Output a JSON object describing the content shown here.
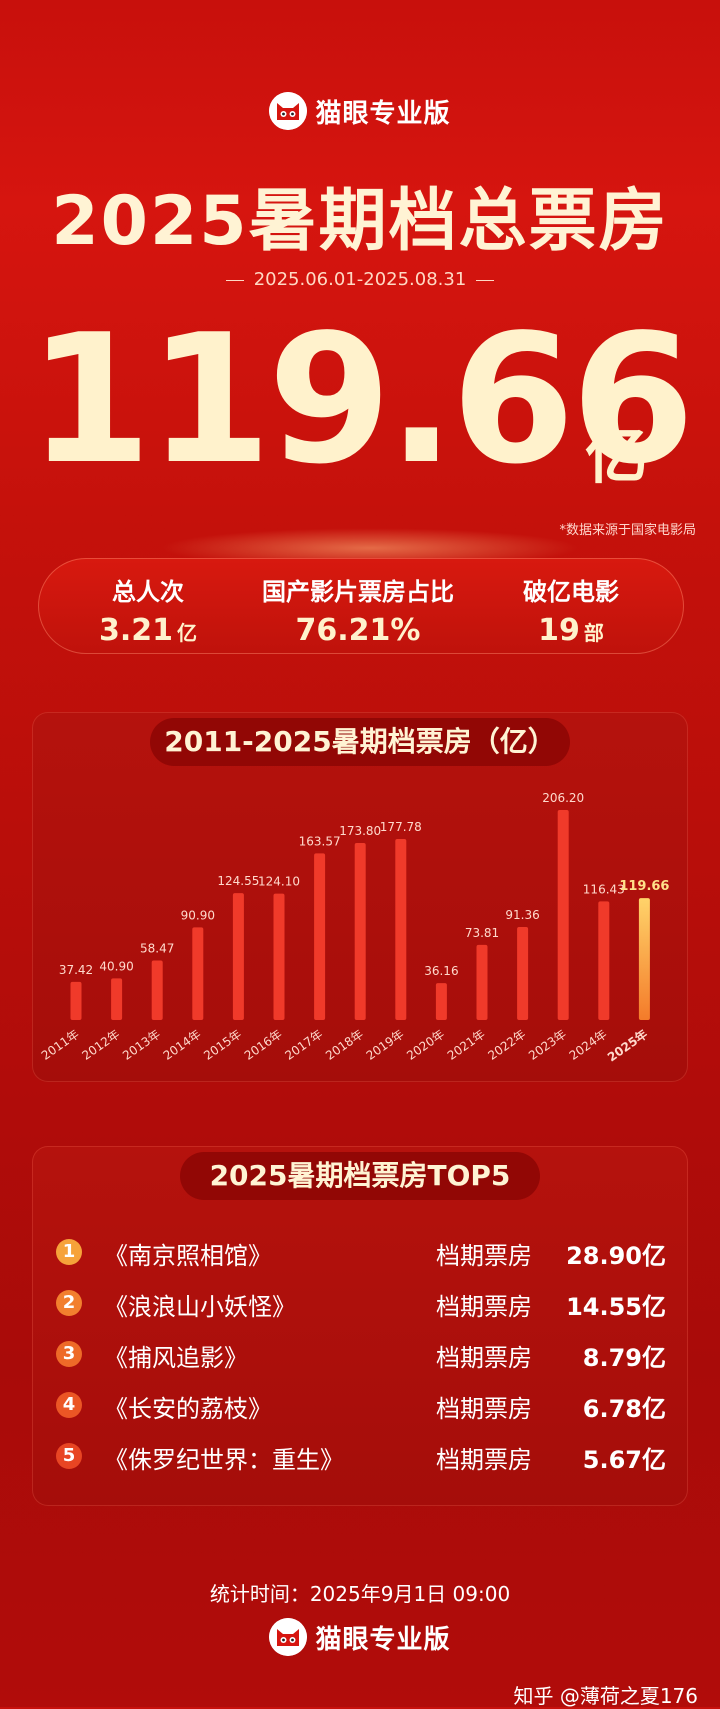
{
  "header": {
    "brand": "猫眼专业版",
    "title": "2025暑期档总票房",
    "date_range": "2025.06.01-2025.08.31",
    "total_value": "119.66",
    "total_unit": "亿",
    "source_note": "*数据来源于国家电影局"
  },
  "stats": [
    {
      "label": "总人次",
      "value": "3.21",
      "unit": "亿"
    },
    {
      "label": "国产影片票房占比",
      "value": "76.21%",
      "unit": ""
    },
    {
      "label": "破亿电影",
      "value": "19",
      "unit": "部"
    }
  ],
  "chart_title": "2011-2025暑期档票房（亿）",
  "chart_data": {
    "type": "bar",
    "categories": [
      "2011年",
      "2012年",
      "2013年",
      "2014年",
      "2015年",
      "2016年",
      "2017年",
      "2018年",
      "2019年",
      "2020年",
      "2021年",
      "2022年",
      "2023年",
      "2024年",
      "2025年"
    ],
    "values": [
      37.42,
      40.9,
      58.47,
      90.9,
      124.55,
      124.1,
      163.57,
      173.8,
      177.78,
      36.16,
      73.81,
      91.36,
      206.2,
      116.43,
      119.66
    ],
    "value_labels": [
      "37.42",
      "40.90",
      "58.47",
      "90.90",
      "124.55",
      "124.10",
      "163.57",
      "173.80",
      "177.78",
      "36.16",
      "73.81",
      "91.36",
      "206.20",
      "116.43",
      "119.66"
    ],
    "highlight_index": 14,
    "ylim": [
      0,
      206.2
    ],
    "grid": false,
    "colors": {
      "bar": "#f03a2a",
      "highlight": "#f7a73c",
      "label": "#ffd9cc",
      "highlight_label": "#ffe08a"
    }
  },
  "top5": {
    "title": "2025暑期档票房TOP5",
    "rows": [
      {
        "rank": "1",
        "name": "《南京照相馆》",
        "label": "档期票房",
        "value": "28.90亿",
        "color": "#f6a23a"
      },
      {
        "rank": "2",
        "name": "《浪浪山小妖怪》",
        "label": "档期票房",
        "value": "14.55亿",
        "color": "#f27f2e"
      },
      {
        "rank": "3",
        "name": "《捕风追影》",
        "label": "档期票房",
        "value": "8.79亿",
        "color": "#ee6a28"
      },
      {
        "rank": "4",
        "name": "《长安的荔枝》",
        "label": "档期票房",
        "value": "6.78亿",
        "color": "#eb5625"
      },
      {
        "rank": "5",
        "name": "《侏罗纪世界：重生》",
        "label": "档期票房",
        "value": "5.67亿",
        "color": "#e84523"
      }
    ]
  },
  "footer": {
    "stat_time": "统计时间：2025年9月1日  09:00",
    "brand": "猫眼专业版",
    "watermark": "知乎 @薄荷之夏176"
  },
  "icons": {
    "brand_logo": "cat-icon",
    "rank_badge": "circle-number-icon"
  }
}
